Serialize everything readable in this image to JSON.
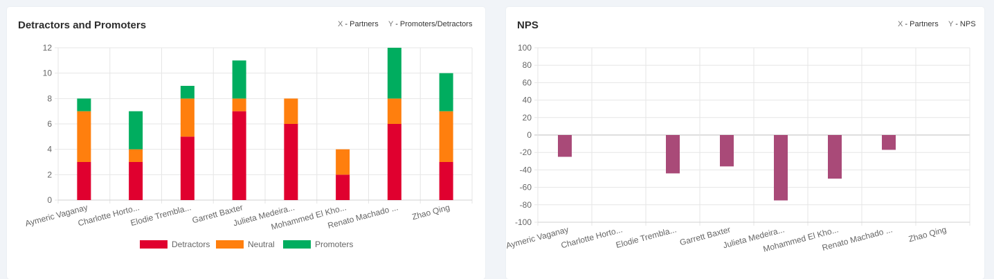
{
  "left_card": {
    "title": "Detractors and Promoters",
    "x_note_prefix": "X",
    "x_note_text": " - Partners",
    "y_note_prefix": "Y",
    "y_note_text": " - Promoters/Detractors"
  },
  "right_card": {
    "title": "NPS",
    "x_note_prefix": "X",
    "x_note_text": " - Partners",
    "y_note_prefix": "Y",
    "y_note_text": " - NPS"
  },
  "chart_data": [
    {
      "type": "bar",
      "stacked": true,
      "title": "Detractors and Promoters",
      "categories": [
        "Aymeric Vaganay",
        "Charlotte Horto...",
        "Elodie  Trembla...",
        "Garrett Baxter",
        "Julieta Medeira...",
        "Mohammed El Kho...",
        "Renato Machado ...",
        "Zhao Qing"
      ],
      "series": [
        {
          "name": "Detractors",
          "color": "#e0002f",
          "values": [
            3,
            3,
            5,
            7,
            6,
            2,
            6,
            3
          ]
        },
        {
          "name": "Neutral",
          "color": "#ff7f0e",
          "values": [
            4,
            1,
            3,
            1,
            2,
            2,
            2,
            4
          ]
        },
        {
          "name": "Promoters",
          "color": "#00ad5f",
          "values": [
            1,
            3,
            1,
            3,
            0,
            0,
            4,
            3
          ]
        }
      ],
      "ylim": [
        0,
        12
      ],
      "yticks": [
        0,
        2,
        4,
        6,
        8,
        10,
        12
      ],
      "grid": true,
      "legend_position": "bottom"
    },
    {
      "type": "bar",
      "title": "NPS",
      "categories": [
        "Aymeric Vaganay",
        "Charlotte Horto...",
        "Elodie  Trembla...",
        "Garrett Baxter",
        "Julieta Medeira...",
        "Mohammed El Kho...",
        "Renato Machado ...",
        "Zhao Qing"
      ],
      "series": [
        {
          "color": "#a94a78",
          "values": [
            -25,
            0,
            -44,
            -36,
            -75,
            -50,
            -17,
            0
          ]
        }
      ],
      "ylim": [
        -100,
        100
      ],
      "yticks": [
        -100,
        -80,
        -60,
        -40,
        -20,
        0,
        20,
        40,
        60,
        80,
        100
      ],
      "grid": true
    }
  ]
}
